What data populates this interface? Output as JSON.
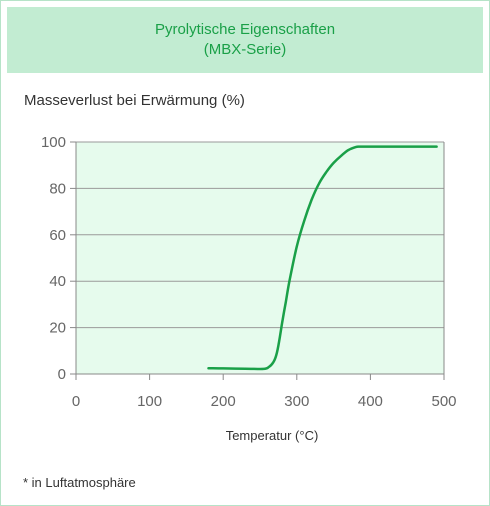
{
  "header": {
    "title_line1": "Pyrolytische Eigenschaften",
    "title_line2": "(MBX-Serie)"
  },
  "footnote": "* in Luftatmosphäre",
  "colors": {
    "header_bg": "#c2ecd2",
    "header_text": "#1aa048",
    "plot_bg": "#e6fbed",
    "line": "#1aa048"
  },
  "chart_data": {
    "type": "line",
    "title": "",
    "xlabel": "Temperatur (°C)",
    "ylabel": "Masseverlust bei Erwärmung (%)",
    "xlim": [
      0,
      500
    ],
    "ylim": [
      0,
      100
    ],
    "xticks": [
      0,
      100,
      200,
      300,
      400,
      500
    ],
    "yticks": [
      0,
      20,
      40,
      60,
      80,
      100
    ],
    "grid": "horizontal",
    "legend": "none",
    "series": [
      {
        "x": [
          180,
          200,
          230,
          255,
          262,
          268,
          272,
          276,
          280,
          285,
          290,
          300,
          310,
          320,
          330,
          340,
          350,
          360,
          370,
          380,
          385,
          390,
          400,
          450,
          490
        ],
        "y": [
          2.5,
          2.4,
          2.3,
          2.2,
          3,
          5,
          8,
          14,
          22,
          31,
          40,
          55,
          66,
          75,
          82,
          87,
          91,
          94,
          96.5,
          97.8,
          98,
          98,
          98,
          98,
          98
        ]
      }
    ]
  }
}
